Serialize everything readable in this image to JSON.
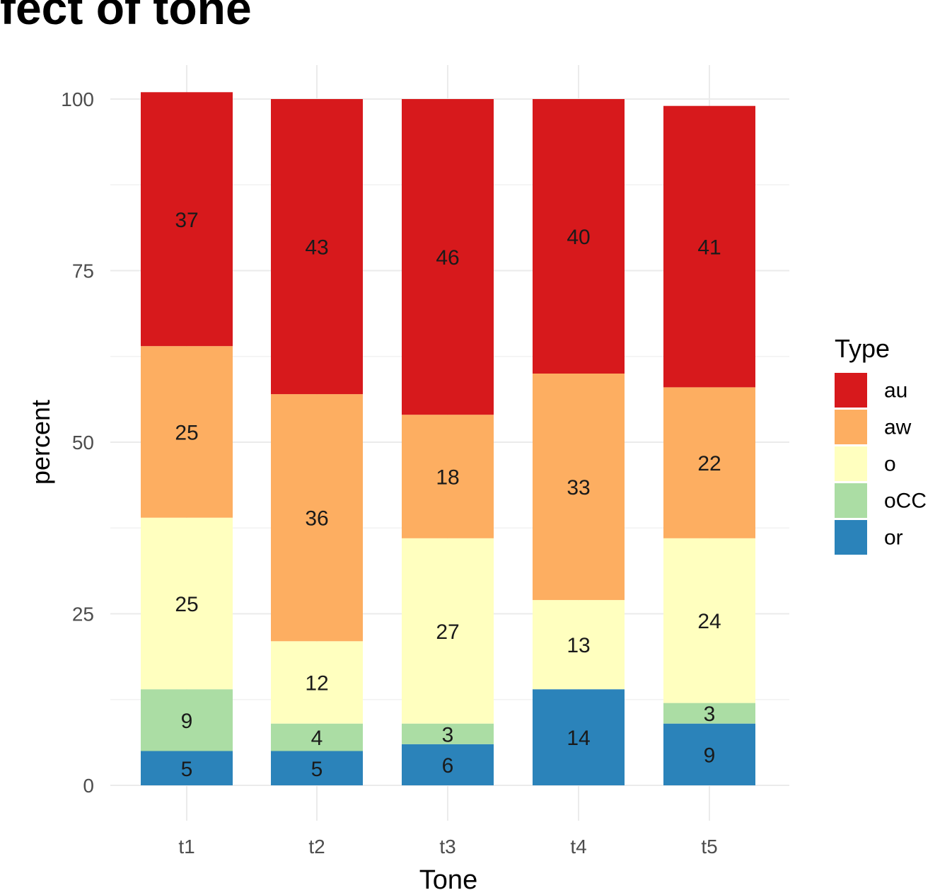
{
  "chart_data": {
    "type": "bar",
    "stacked": true,
    "title": "fect of tone",
    "xlabel": "Tone",
    "ylabel": "percent",
    "categories": [
      "t1",
      "t2",
      "t3",
      "t4",
      "t5"
    ],
    "ylim": [
      0,
      100
    ],
    "yticks": [
      0,
      25,
      50,
      75,
      100
    ],
    "grid": true,
    "legend": {
      "title": "Type",
      "position": "right"
    },
    "series": [
      {
        "name": "au",
        "color": "#d7191c",
        "values": [
          37,
          43,
          46,
          40,
          41
        ]
      },
      {
        "name": "aw",
        "color": "#fdae61",
        "values": [
          25,
          36,
          18,
          33,
          22
        ]
      },
      {
        "name": "o",
        "color": "#ffffbf",
        "values": [
          25,
          12,
          27,
          13,
          24
        ]
      },
      {
        "name": "oCC",
        "color": "#abdda4",
        "values": [
          9,
          4,
          3,
          0,
          3
        ]
      },
      {
        "name": "or",
        "color": "#2b83ba",
        "values": [
          5,
          5,
          6,
          14,
          9
        ]
      }
    ],
    "labels": {
      "au": [
        "37",
        "43",
        "46",
        "40",
        "41"
      ],
      "aw": [
        "25",
        "36",
        "18",
        "33",
        "22"
      ],
      "o": [
        "25",
        "12",
        "27",
        "13",
        "24"
      ],
      "oCC": [
        "9",
        "4",
        "3",
        "",
        "3"
      ],
      "or": [
        "5",
        "5",
        "6",
        "14",
        "9"
      ]
    }
  }
}
